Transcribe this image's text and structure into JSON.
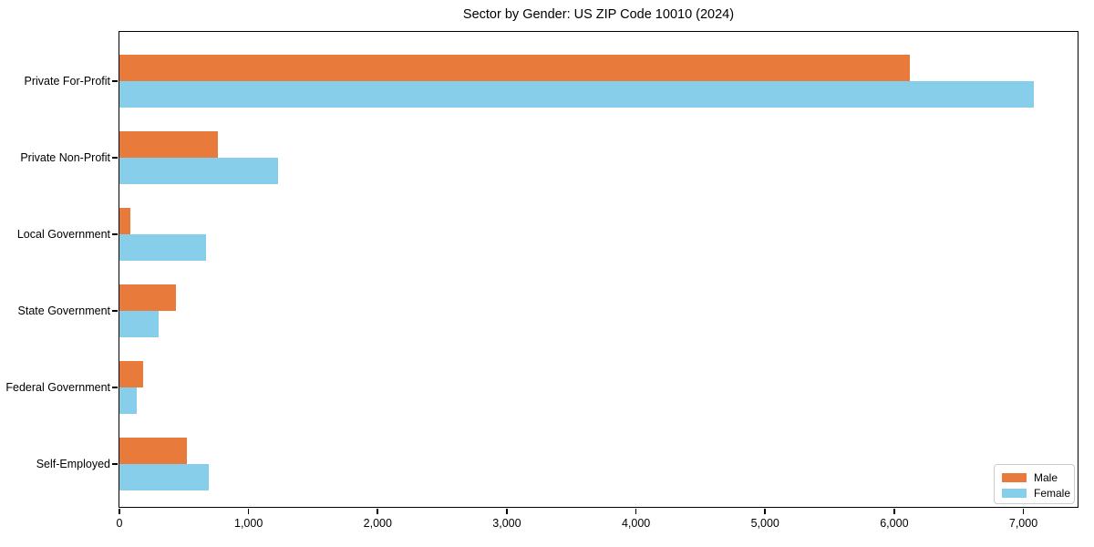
{
  "chart_data": {
    "type": "bar",
    "orientation": "horizontal",
    "title": "Sector by Gender: US ZIP Code 10010 (2024)",
    "xlabel": "",
    "ylabel": "",
    "categories": [
      "Private For-Profit",
      "Private Non-Profit",
      "Local Government",
      "State Government",
      "Federal Government",
      "Self-Employed"
    ],
    "series": [
      {
        "name": "Male",
        "color": "#E87A3C",
        "values": [
          6120,
          760,
          85,
          440,
          185,
          520
        ]
      },
      {
        "name": "Female",
        "color": "#87CEEB",
        "values": [
          7080,
          1230,
          670,
          300,
          135,
          695
        ]
      }
    ],
    "xlim": [
      0,
      7434
    ],
    "x_ticks": [
      {
        "value": 0,
        "label": "0"
      },
      {
        "value": 1000,
        "label": "1,000"
      },
      {
        "value": 2000,
        "label": "2,000"
      },
      {
        "value": 3000,
        "label": "3,000"
      },
      {
        "value": 4000,
        "label": "4,000"
      },
      {
        "value": 5000,
        "label": "5,000"
      },
      {
        "value": 6000,
        "label": "6,000"
      },
      {
        "value": 7000,
        "label": "7,000"
      }
    ],
    "grid": false,
    "legend_position": "lower right",
    "plot_background": "#ffffff",
    "spine_color": "#000000"
  }
}
